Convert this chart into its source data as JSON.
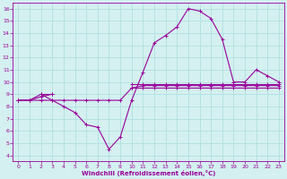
{
  "xlabel": "Windchill (Refroidissement éolien,°C)",
  "x_hours": [
    0,
    1,
    2,
    3,
    4,
    5,
    6,
    7,
    8,
    9,
    10,
    11,
    12,
    13,
    14,
    15,
    16,
    17,
    18,
    19,
    20,
    21,
    22,
    23
  ],
  "s1": [
    8.5,
    8.5,
    9.0,
    8.5,
    8.0,
    7.5,
    6.5,
    6.3,
    4.5,
    5.5,
    8.5,
    10.8,
    13.2,
    13.8,
    14.5,
    16.0,
    15.8,
    15.2,
    13.5,
    10.0,
    10.0,
    11.0,
    10.5,
    10.0
  ],
  "s2": [
    8.5,
    8.5,
    8.8,
    9.0,
    null,
    null,
    null,
    null,
    null,
    null,
    9.5,
    9.7,
    9.7,
    9.7,
    9.7,
    9.7,
    9.7,
    9.7,
    9.7,
    9.7,
    9.7,
    9.7,
    9.7,
    9.7
  ],
  "s3": [
    8.5,
    8.5,
    8.5,
    8.5,
    8.5,
    8.5,
    8.5,
    8.5,
    8.5,
    8.5,
    9.5,
    9.5,
    9.5,
    9.5,
    9.5,
    9.5,
    9.5,
    9.5,
    9.5,
    9.5,
    9.5,
    9.5,
    9.5,
    9.5
  ],
  "s4": [
    null,
    null,
    9.0,
    9.0,
    null,
    null,
    null,
    null,
    null,
    null,
    9.8,
    9.8,
    9.8,
    9.8,
    9.8,
    9.8,
    9.8,
    9.8,
    9.8,
    9.8,
    9.8,
    9.8,
    9.8,
    9.8
  ],
  "line_color": "#990099",
  "bg_color": "#d4f0f0",
  "grid_color": "#aadddd",
  "ylim": [
    3.5,
    16.5
  ],
  "yticks": [
    4,
    5,
    6,
    7,
    8,
    9,
    10,
    11,
    12,
    13,
    14,
    15,
    16
  ],
  "xticks": [
    0,
    1,
    2,
    3,
    4,
    5,
    6,
    7,
    8,
    9,
    10,
    11,
    12,
    13,
    14,
    15,
    16,
    17,
    18,
    19,
    20,
    21,
    22,
    23
  ],
  "figsize": [
    3.2,
    2.0
  ],
  "dpi": 100
}
